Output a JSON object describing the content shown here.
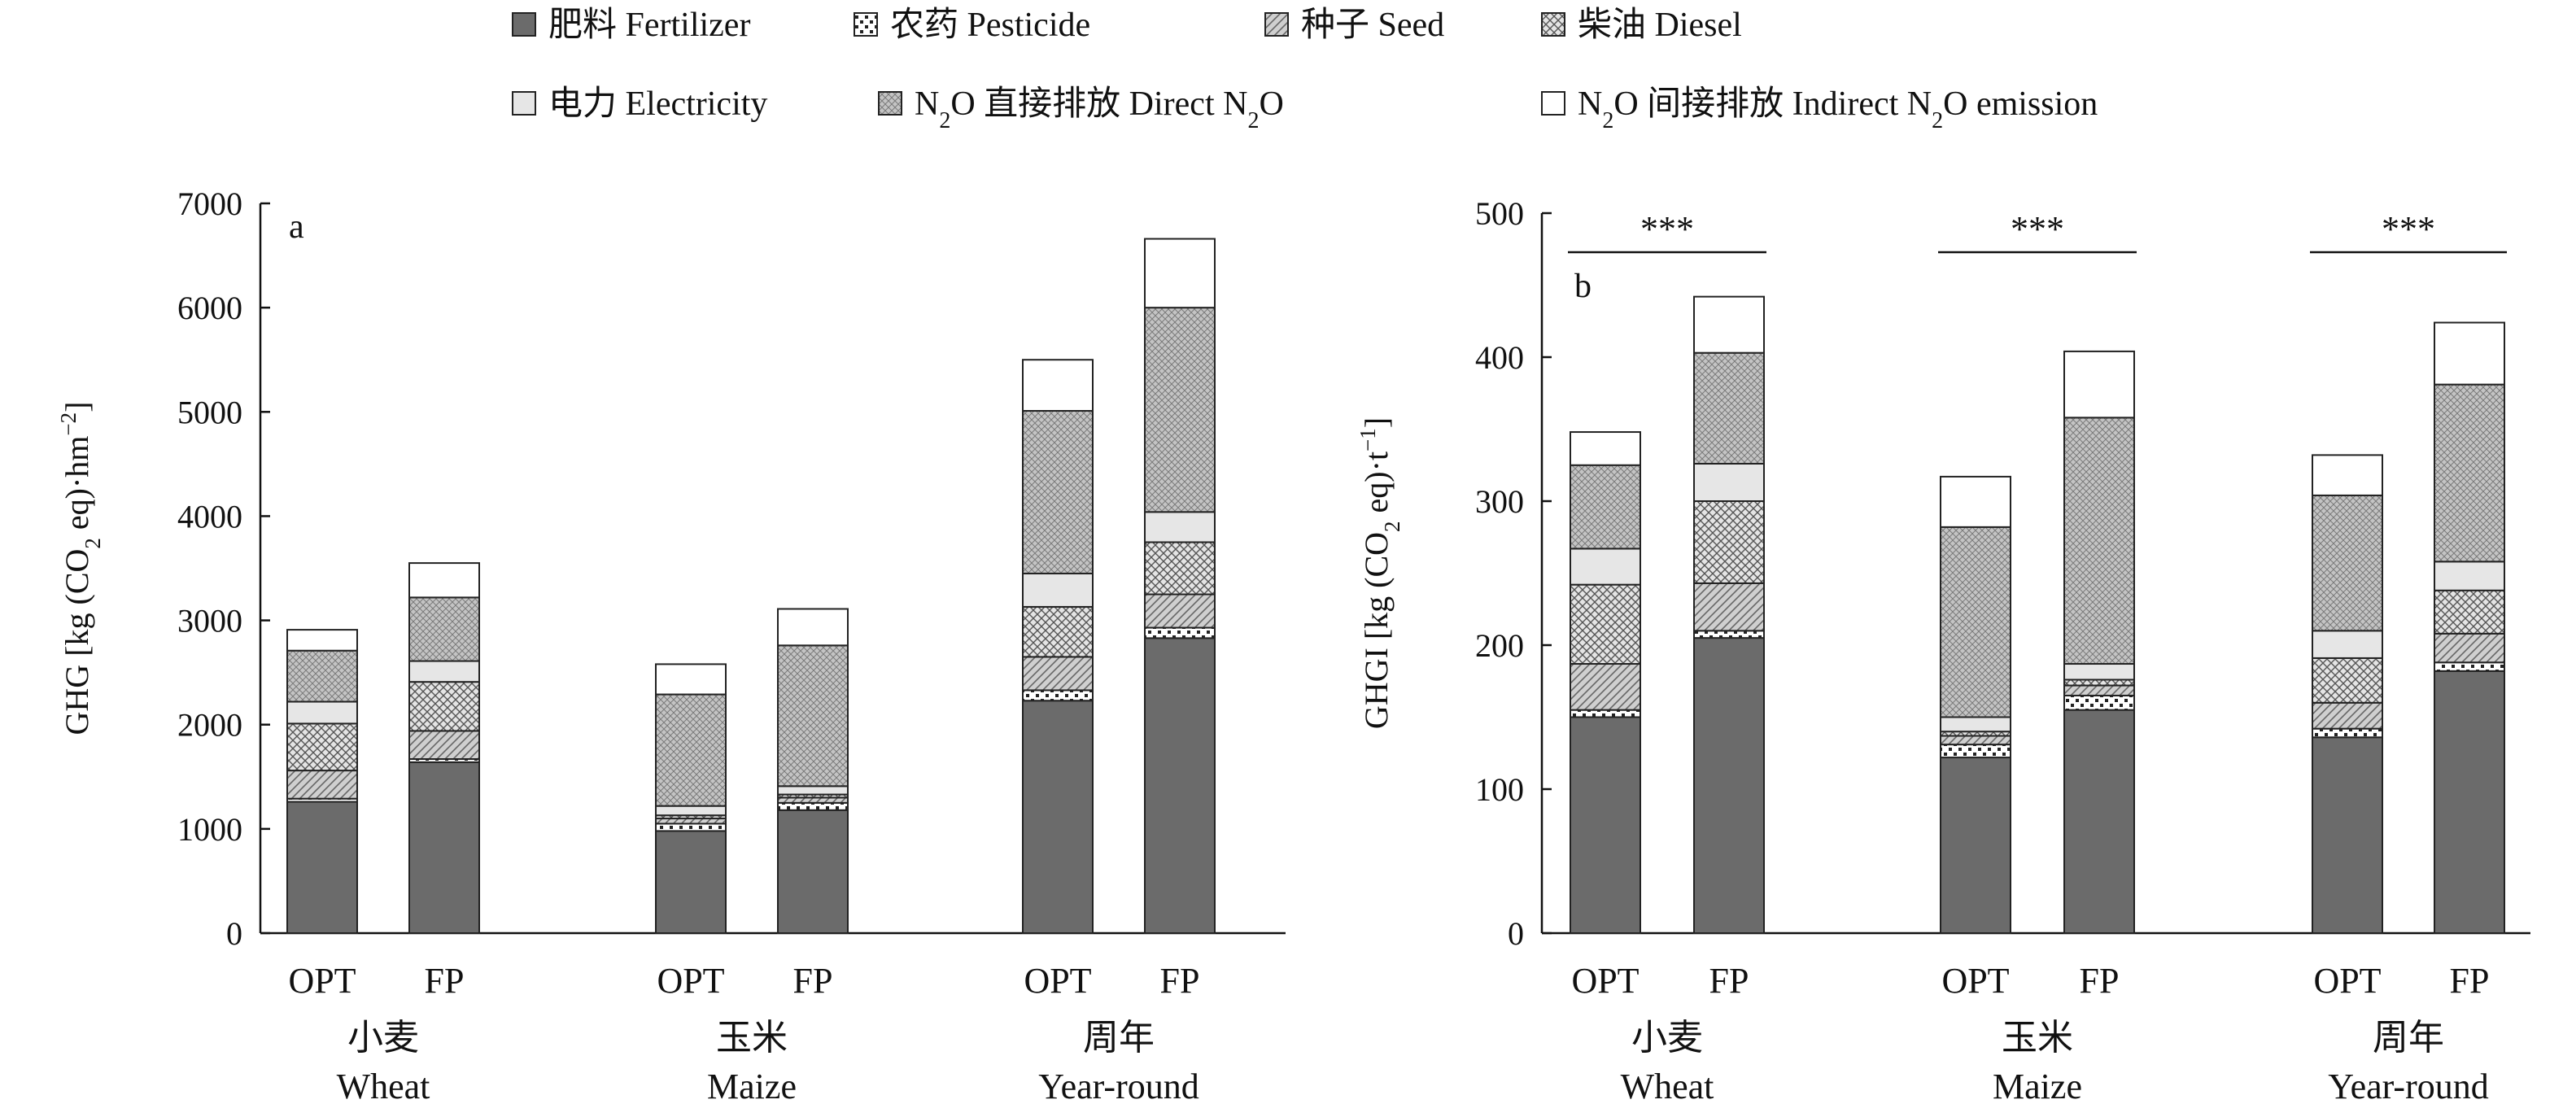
{
  "legend": {
    "items": [
      {
        "key": "fertilizer",
        "label": "肥料 Fertilizer"
      },
      {
        "key": "pesticide",
        "label": "农药 Pesticide"
      },
      {
        "key": "seed",
        "label": "种子 Seed"
      },
      {
        "key": "diesel",
        "label": "柴油 Diesel"
      },
      {
        "key": "electricity",
        "label": "电力 Electricity"
      },
      {
        "key": "direct_n2o",
        "label_main": "N",
        "label_sub": "2",
        "label_rest": "O 直接排放 Direct N",
        "label_sub2": "2",
        "label_end": "O"
      },
      {
        "key": "indirect_n2o",
        "label_main": "N",
        "label_sub": "2",
        "label_rest": "O 间接排放 Indirect N",
        "label_sub2": "2",
        "label_end": "O emission"
      }
    ]
  },
  "chart_data": [
    {
      "type": "bar",
      "stacked": true,
      "panel_label": "a",
      "ylabel": {
        "pre": "GHG [kg (CO",
        "sub": "2",
        "mid": " eq)·hm",
        "sup": "−2",
        "post": "]"
      },
      "ylim": [
        0,
        7000
      ],
      "yticks": [
        0,
        1000,
        2000,
        3000,
        4000,
        5000,
        6000,
        7000
      ],
      "groups": [
        {
          "cn": "小麦",
          "en": "Wheat",
          "treatments": [
            "OPT",
            "FP"
          ]
        },
        {
          "cn": "玉米",
          "en": "Maize",
          "treatments": [
            "OPT",
            "FP"
          ]
        },
        {
          "cn": "周年",
          "en": "Year-round",
          "treatments": [
            "OPT",
            "FP"
          ]
        }
      ],
      "series_order": [
        "fertilizer",
        "pesticide",
        "seed",
        "diesel",
        "electricity",
        "direct_n2o",
        "indirect_n2o"
      ],
      "bars": [
        {
          "group": 0,
          "treatment": "OPT",
          "values": {
            "fertilizer": 1260,
            "pesticide": 30,
            "seed": 270,
            "diesel": 450,
            "electricity": 210,
            "direct_n2o": 490,
            "indirect_n2o": 200
          }
        },
        {
          "group": 0,
          "treatment": "FP",
          "values": {
            "fertilizer": 1640,
            "pesticide": 30,
            "seed": 270,
            "diesel": 470,
            "electricity": 200,
            "direct_n2o": 610,
            "indirect_n2o": 330
          }
        },
        {
          "group": 1,
          "treatment": "OPT",
          "values": {
            "fertilizer": 980,
            "pesticide": 70,
            "seed": 50,
            "diesel": 30,
            "electricity": 90,
            "direct_n2o": 1070,
            "indirect_n2o": 290
          }
        },
        {
          "group": 1,
          "treatment": "FP",
          "values": {
            "fertilizer": 1180,
            "pesticide": 70,
            "seed": 50,
            "diesel": 30,
            "electricity": 80,
            "direct_n2o": 1350,
            "indirect_n2o": 350
          }
        },
        {
          "group": 2,
          "treatment": "OPT",
          "values": {
            "fertilizer": 2230,
            "pesticide": 100,
            "seed": 320,
            "diesel": 480,
            "electricity": 320,
            "direct_n2o": 1560,
            "indirect_n2o": 490
          }
        },
        {
          "group": 2,
          "treatment": "FP",
          "values": {
            "fertilizer": 2830,
            "pesticide": 100,
            "seed": 320,
            "diesel": 500,
            "electricity": 290,
            "direct_n2o": 1960,
            "indirect_n2o": 660
          }
        }
      ]
    },
    {
      "type": "bar",
      "stacked": true,
      "panel_label": "b",
      "ylabel": {
        "pre": "GHGI [kg (CO",
        "sub": "2",
        "mid": " eq)·t",
        "sup": "−1",
        "post": "]"
      },
      "ylim": [
        0,
        500
      ],
      "yticks": [
        0,
        100,
        200,
        300,
        400,
        500
      ],
      "groups": [
        {
          "cn": "小麦",
          "en": "Wheat",
          "treatments": [
            "OPT",
            "FP"
          ],
          "significance": "***"
        },
        {
          "cn": "玉米",
          "en": "Maize",
          "treatments": [
            "OPT",
            "FP"
          ],
          "significance": "***"
        },
        {
          "cn": "周年",
          "en": "Year-round",
          "treatments": [
            "OPT",
            "FP"
          ],
          "significance": "***"
        }
      ],
      "series_order": [
        "fertilizer",
        "pesticide",
        "seed",
        "diesel",
        "electricity",
        "direct_n2o",
        "indirect_n2o"
      ],
      "bars": [
        {
          "group": 0,
          "treatment": "OPT",
          "values": {
            "fertilizer": 150,
            "pesticide": 5,
            "seed": 32,
            "diesel": 55,
            "electricity": 25,
            "direct_n2o": 58,
            "indirect_n2o": 23
          }
        },
        {
          "group": 0,
          "treatment": "FP",
          "values": {
            "fertilizer": 205,
            "pesticide": 5,
            "seed": 33,
            "diesel": 57,
            "electricity": 26,
            "direct_n2o": 77,
            "indirect_n2o": 39
          }
        },
        {
          "group": 1,
          "treatment": "OPT",
          "values": {
            "fertilizer": 122,
            "pesticide": 9,
            "seed": 6,
            "diesel": 3,
            "electricity": 10,
            "direct_n2o": 132,
            "indirect_n2o": 35
          }
        },
        {
          "group": 1,
          "treatment": "FP",
          "values": {
            "fertilizer": 155,
            "pesticide": 10,
            "seed": 7,
            "diesel": 4,
            "electricity": 11,
            "direct_n2o": 171,
            "indirect_n2o": 46
          }
        },
        {
          "group": 2,
          "treatment": "OPT",
          "values": {
            "fertilizer": 136,
            "pesticide": 6,
            "seed": 18,
            "diesel": 31,
            "electricity": 19,
            "direct_n2o": 94,
            "indirect_n2o": 28
          }
        },
        {
          "group": 2,
          "treatment": "FP",
          "values": {
            "fertilizer": 182,
            "pesticide": 6,
            "seed": 20,
            "diesel": 30,
            "electricity": 20,
            "direct_n2o": 123,
            "indirect_n2o": 43
          }
        }
      ]
    }
  ]
}
